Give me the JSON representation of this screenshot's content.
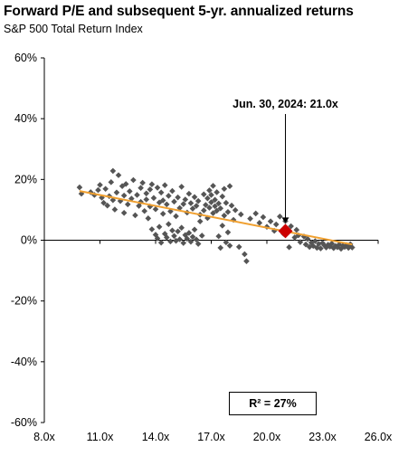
{
  "chart_data": {
    "type": "scatter",
    "title": "Forward P/E and subsequent 5-yr. annualized returns",
    "subtitle": "S&P 500 Total Return Index",
    "xlabel": "",
    "ylabel": "",
    "xlim": [
      8.0,
      26.0
    ],
    "ylim": [
      -60,
      60
    ],
    "x_ticks": [
      8.0,
      11.0,
      14.0,
      17.0,
      20.0,
      23.0,
      26.0
    ],
    "x_tick_labels": [
      "8.0x",
      "11.0x",
      "14.0x",
      "17.0x",
      "20.0x",
      "23.0x",
      "26.0x"
    ],
    "y_ticks": [
      60,
      40,
      20,
      0,
      -20,
      -40,
      -60
    ],
    "y_tick_labels": [
      "60%",
      "40%",
      "20%",
      "0%",
      "-20%",
      "-40%",
      "-60%"
    ],
    "grid": false,
    "points": [
      [
        9.9,
        17.4
      ],
      [
        10.0,
        15.3
      ],
      [
        10.5,
        15.8
      ],
      [
        10.7,
        14.9
      ],
      [
        10.9,
        16.5
      ],
      [
        11.0,
        18.2
      ],
      [
        11.1,
        14.0
      ],
      [
        11.2,
        12.3
      ],
      [
        11.3,
        16.9
      ],
      [
        11.4,
        11.4
      ],
      [
        11.5,
        14.5
      ],
      [
        11.6,
        19.1
      ],
      [
        11.7,
        13.2
      ],
      [
        11.7,
        22.8
      ],
      [
        11.8,
        10.1
      ],
      [
        11.9,
        15.7
      ],
      [
        12.0,
        21.4
      ],
      [
        12.1,
        12.9
      ],
      [
        12.2,
        17.8
      ],
      [
        12.3,
        9.0
      ],
      [
        12.3,
        14.7
      ],
      [
        12.4,
        18.5
      ],
      [
        12.5,
        11.8
      ],
      [
        12.6,
        16.1
      ],
      [
        12.7,
        13.7
      ],
      [
        12.8,
        19.8
      ],
      [
        12.9,
        8.2
      ],
      [
        13.0,
        14.9
      ],
      [
        13.1,
        11.3
      ],
      [
        13.2,
        17.2
      ],
      [
        13.2,
        12.6
      ],
      [
        13.3,
        18.9
      ],
      [
        13.4,
        9.6
      ],
      [
        13.5,
        15.4
      ],
      [
        13.5,
        13.4
      ],
      [
        13.6,
        7.2
      ],
      [
        13.7,
        16.7
      ],
      [
        13.7,
        11.1
      ],
      [
        13.8,
        18.4
      ],
      [
        13.8,
        3.6
      ],
      [
        13.9,
        13.9
      ],
      [
        14.0,
        1.8
      ],
      [
        14.0,
        10.2
      ],
      [
        14.1,
        17.3
      ],
      [
        14.1,
        0.6
      ],
      [
        14.2,
        12.4
      ],
      [
        14.2,
        4.4
      ],
      [
        14.3,
        15.7
      ],
      [
        14.3,
        -0.8
      ],
      [
        14.4,
        8.7
      ],
      [
        14.4,
        13.1
      ],
      [
        14.5,
        2.1
      ],
      [
        14.5,
        18.1
      ],
      [
        14.6,
        0.9
      ],
      [
        14.6,
        11.8
      ],
      [
        14.7,
        5.3
      ],
      [
        14.7,
        14.6
      ],
      [
        14.8,
        -0.4
      ],
      [
        14.8,
        9.5
      ],
      [
        14.9,
        3.2
      ],
      [
        14.9,
        16.2
      ],
      [
        15.0,
        1.4
      ],
      [
        15.0,
        12.7
      ],
      [
        15.1,
        -0.2
      ],
      [
        15.1,
        7.9
      ],
      [
        15.2,
        2.9
      ],
      [
        15.2,
        14.1
      ],
      [
        15.3,
        0.3
      ],
      [
        15.3,
        10.6
      ],
      [
        15.4,
        4.1
      ],
      [
        15.4,
        17.6
      ],
      [
        15.5,
        -0.9
      ],
      [
        15.5,
        11.9
      ],
      [
        15.6,
        1.7
      ],
      [
        15.6,
        13.4
      ],
      [
        15.7,
        0.5
      ],
      [
        15.7,
        9.1
      ],
      [
        15.8,
        2.4
      ],
      [
        15.8,
        15.3
      ],
      [
        15.9,
        -0.5
      ],
      [
        15.9,
        12.2
      ],
      [
        16.0,
        1.1
      ],
      [
        16.0,
        10.4
      ],
      [
        16.1,
        3.5
      ],
      [
        16.1,
        14.2
      ],
      [
        16.2,
        0.2
      ],
      [
        16.2,
        11.3
      ],
      [
        16.3,
        -1.2
      ],
      [
        16.3,
        12.9
      ],
      [
        16.4,
        6.2
      ],
      [
        16.4,
        8.4
      ],
      [
        16.5,
        1.5
      ],
      [
        16.6,
        15.1
      ],
      [
        16.6,
        9.8
      ],
      [
        16.7,
        11.6
      ],
      [
        16.8,
        13.8
      ],
      [
        16.8,
        7.3
      ],
      [
        16.9,
        16.4
      ],
      [
        16.9,
        10.7
      ],
      [
        17.0,
        12.5
      ],
      [
        17.0,
        14.9
      ],
      [
        17.1,
        8.9
      ],
      [
        17.1,
        17.9
      ],
      [
        17.2,
        11.2
      ],
      [
        17.2,
        13.3
      ],
      [
        17.3,
        9.7
      ],
      [
        17.3,
        15.8
      ],
      [
        17.4,
        1.3
      ],
      [
        17.4,
        12.1
      ],
      [
        17.5,
        -2.5
      ],
      [
        17.5,
        10.5
      ],
      [
        17.6,
        14.4
      ],
      [
        17.6,
        4.8
      ],
      [
        17.7,
        8.1
      ],
      [
        17.7,
        16.9
      ],
      [
        17.8,
        -0.7
      ],
      [
        17.8,
        12.3
      ],
      [
        17.9,
        2.6
      ],
      [
        17.9,
        9.3
      ],
      [
        18.0,
        17.8
      ],
      [
        18.0,
        -1.8
      ],
      [
        18.1,
        11.4
      ],
      [
        18.2,
        6.7
      ],
      [
        18.3,
        9.9
      ],
      [
        18.5,
        -2.2
      ],
      [
        18.6,
        8.5
      ],
      [
        18.8,
        -4.6
      ],
      [
        18.9,
        -6.9
      ],
      [
        19.1,
        7.1
      ],
      [
        19.4,
        8.8
      ],
      [
        19.6,
        5.7
      ],
      [
        19.8,
        7.6
      ],
      [
        20.0,
        4.4
      ],
      [
        20.2,
        6.2
      ],
      [
        20.4,
        3.1
      ],
      [
        20.5,
        5.2
      ],
      [
        20.7,
        7.8
      ],
      [
        20.9,
        2.1
      ],
      [
        21.0,
        6.3
      ],
      [
        21.2,
        -2.3
      ],
      [
        21.3,
        4.6
      ],
      [
        21.5,
        0.9
      ],
      [
        21.6,
        3.4
      ],
      [
        21.7,
        1.6
      ],
      [
        21.8,
        -0.6
      ],
      [
        22.0,
        1.2
      ],
      [
        22.1,
        -1.4
      ],
      [
        22.2,
        0.4
      ],
      [
        22.3,
        -2.2
      ],
      [
        22.4,
        -0.8
      ],
      [
        22.5,
        -1.9
      ],
      [
        22.6,
        -0.3
      ],
      [
        22.7,
        -2.5
      ],
      [
        22.8,
        -1.2
      ],
      [
        22.9,
        -2.7
      ],
      [
        23.0,
        -0.9
      ],
      [
        23.1,
        -1.7
      ],
      [
        23.2,
        -2.4
      ],
      [
        23.3,
        -1.5
      ],
      [
        23.4,
        -2.1
      ],
      [
        23.5,
        -1.1
      ],
      [
        23.6,
        -2.6
      ],
      [
        23.7,
        -1.9
      ],
      [
        23.8,
        -2.3
      ],
      [
        23.9,
        -1.4
      ],
      [
        24.0,
        -2.8
      ],
      [
        24.1,
        -1.8
      ],
      [
        24.2,
        -2.2
      ],
      [
        24.3,
        -1.6
      ],
      [
        24.4,
        -2.5
      ],
      [
        24.5,
        -1.3
      ],
      [
        24.6,
        -2.4
      ]
    ],
    "trendline": {
      "x": [
        9.9,
        24.6
      ],
      "y": [
        16.2,
        -1.4
      ]
    },
    "highlight": {
      "x": 21.0,
      "y": 3.0,
      "label": "Jun. 30, 2024: 21.0x"
    },
    "r_squared_label": "R² = 27%",
    "colors": {
      "points": "#555555",
      "trendline": "#f0a030",
      "highlight": "#cc0000",
      "axis": "#000000"
    }
  }
}
